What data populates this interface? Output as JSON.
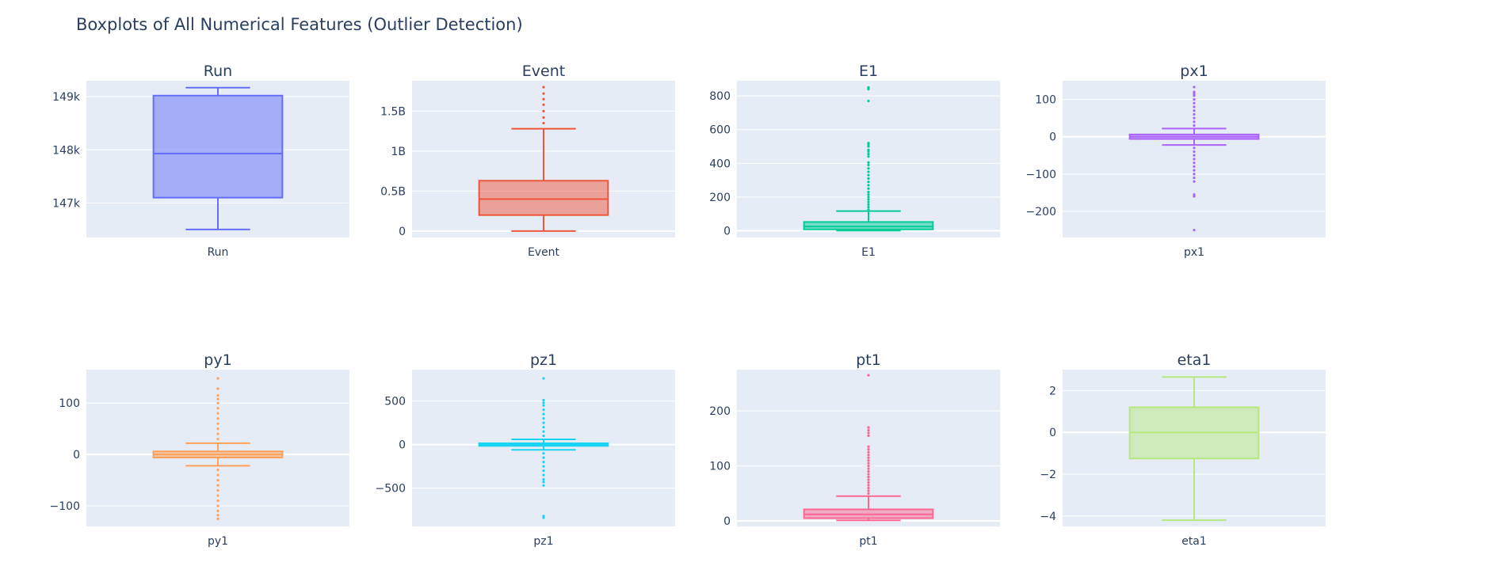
{
  "title": "Boxplots of All Numerical Features (Outlier Detection)",
  "chart_data": [
    {
      "type": "box",
      "title": "Run",
      "category": "Run",
      "color": "#636efa",
      "ylim": [
        146350,
        149300
      ],
      "ticks": [
        {
          "v": 147000,
          "label": "147k"
        },
        {
          "v": 148000,
          "label": "148k"
        },
        {
          "v": 149000,
          "label": "149k"
        }
      ],
      "lower_fence": 146500,
      "q1": 147100,
      "median": 147930,
      "q3": 149020,
      "upper_fence": 149170,
      "outliers": []
    },
    {
      "type": "box",
      "title": "Event",
      "category": "Event",
      "color": "#ef553b",
      "ylim": [
        -0.08,
        1.88
      ],
      "ticks": [
        {
          "v": 0,
          "label": "0"
        },
        {
          "v": 0.5,
          "label": "0.5B"
        },
        {
          "v": 1,
          "label": "1B"
        },
        {
          "v": 1.5,
          "label": "1.5B"
        }
      ],
      "lower_fence": 0,
      "q1": 0.2,
      "median": 0.4,
      "q3": 0.63,
      "upper_fence": 1.28,
      "outliers": [
        1.35,
        1.42,
        1.5,
        1.58,
        1.65,
        1.72,
        1.8
      ]
    },
    {
      "type": "box",
      "title": "E1",
      "category": "E1",
      "color": "#00cc96",
      "ylim": [
        -40,
        890
      ],
      "ticks": [
        {
          "v": 0,
          "label": "0"
        },
        {
          "v": 200,
          "label": "200"
        },
        {
          "v": 400,
          "label": "400"
        },
        {
          "v": 600,
          "label": "600"
        },
        {
          "v": 800,
          "label": "800"
        }
      ],
      "lower_fence": 1,
      "q1": 8,
      "median": 25,
      "q3": 52,
      "upper_fence": 117,
      "outliers": [
        125,
        140,
        155,
        170,
        185,
        200,
        215,
        230,
        250,
        270,
        290,
        310,
        330,
        350,
        370,
        390,
        405,
        440,
        455,
        470,
        480,
        500,
        510,
        520,
        770,
        840,
        850
      ]
    },
    {
      "type": "box",
      "title": "px1",
      "category": "px1",
      "color": "#ab63fa",
      "ylim": [
        -270,
        150
      ],
      "ticks": [
        {
          "v": -200,
          "label": "−200"
        },
        {
          "v": -100,
          "label": "−100"
        },
        {
          "v": 0,
          "label": "0"
        },
        {
          "v": 100,
          "label": "100"
        }
      ],
      "lower_fence": -22,
      "q1": -6,
      "median": 0,
      "q3": 6,
      "upper_fence": 22,
      "outliers": [
        -120,
        -110,
        -100,
        -90,
        -80,
        -70,
        -60,
        -50,
        -40,
        -30,
        30,
        40,
        50,
        60,
        70,
        80,
        90,
        100,
        110,
        115,
        120,
        133,
        -155,
        -160,
        -250
      ]
    },
    {
      "type": "box",
      "title": "py1",
      "category": "py1",
      "color": "#ffa15a",
      "ylim": [
        -140,
        165
      ],
      "ticks": [
        {
          "v": -100,
          "label": "−100"
        },
        {
          "v": 0,
          "label": "0"
        },
        {
          "v": 100,
          "label": "100"
        }
      ],
      "lower_fence": -22,
      "q1": -6,
      "median": 0,
      "q3": 6,
      "upper_fence": 22,
      "outliers": [
        -125,
        -118,
        -110,
        -100,
        -90,
        -80,
        -70,
        -60,
        -50,
        -40,
        -30,
        30,
        40,
        50,
        60,
        70,
        80,
        90,
        100,
        108,
        115,
        128,
        148
      ]
    },
    {
      "type": "box",
      "title": "pz1",
      "category": "pz1",
      "color": "#19d3f3",
      "ylim": [
        -940,
        860
      ],
      "ticks": [
        {
          "v": -500,
          "label": "−500"
        },
        {
          "v": 0,
          "label": "0"
        },
        {
          "v": 500,
          "label": "500"
        }
      ],
      "lower_fence": -60,
      "q1": -15,
      "median": 0,
      "q3": 15,
      "upper_fence": 60,
      "outliers": [
        -470,
        -430,
        -400,
        -350,
        -300,
        -250,
        -200,
        -150,
        -100,
        100,
        150,
        200,
        250,
        300,
        350,
        400,
        450,
        480,
        510,
        -820,
        -840,
        760
      ]
    },
    {
      "type": "box",
      "title": "pt1",
      "category": "pt1",
      "color": "#ff6692",
      "ylim": [
        -10,
        275
      ],
      "ticks": [
        {
          "v": 0,
          "label": "0"
        },
        {
          "v": 100,
          "label": "100"
        },
        {
          "v": 200,
          "label": "200"
        }
      ],
      "lower_fence": 1,
      "q1": 5,
      "median": 12,
      "q3": 21,
      "upper_fence": 45,
      "outliers": [
        50,
        55,
        60,
        65,
        70,
        75,
        80,
        85,
        90,
        95,
        100,
        105,
        110,
        115,
        120,
        125,
        130,
        135,
        155,
        160,
        165,
        170,
        265
      ]
    },
    {
      "type": "box",
      "title": "eta1",
      "category": "eta1",
      "color": "#b6e880",
      "ylim": [
        -4.5,
        3.0
      ],
      "ticks": [
        {
          "v": -4,
          "label": "−4"
        },
        {
          "v": -2,
          "label": "−2"
        },
        {
          "v": 0,
          "label": "0"
        },
        {
          "v": 2,
          "label": "2"
        }
      ],
      "lower_fence": -4.2,
      "q1": -1.25,
      "median": 0,
      "q3": 1.2,
      "upper_fence": 2.65,
      "outliers": []
    }
  ]
}
